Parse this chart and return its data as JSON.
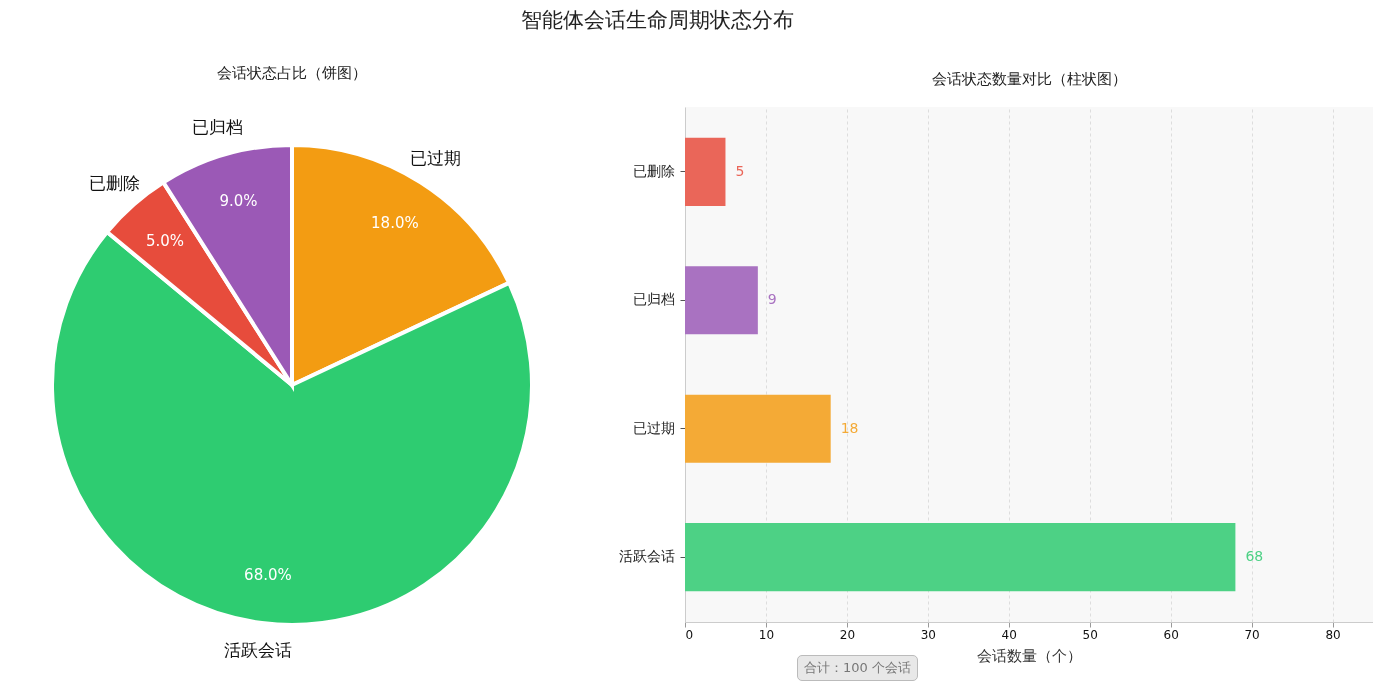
{
  "chart_data": [
    {
      "type": "other",
      "title": "智能体会话生命周期状态分布"
    },
    {
      "type": "pie",
      "title": "会话状态占比（饼图）",
      "categories": [
        "已过期",
        "活跃会话",
        "已删除",
        "已归档"
      ],
      "values": [
        18,
        68,
        5,
        9
      ],
      "colors": [
        "#f39c12",
        "#2ecc71",
        "#e74c3c",
        "#9b59b6"
      ],
      "value_labels": [
        "18.0%",
        "68.0%",
        "5.0%",
        "9.0%"
      ]
    },
    {
      "type": "bar",
      "title": "会话状态数量对比（柱状图）",
      "orientation": "horizontal",
      "categories": [
        "已删除",
        "已归档",
        "已过期",
        "活跃会话"
      ],
      "values": [
        5,
        9,
        18,
        68
      ],
      "colors": [
        "#ea6659",
        "#a972c1",
        "#f4aa36",
        "#4dd185"
      ],
      "xlim": [
        0,
        85
      ],
      "xticks": [
        0,
        10,
        20,
        30,
        40,
        50,
        60,
        70,
        80
      ],
      "xlabel": "会话数量（个）",
      "grid": "x",
      "data_labels": true,
      "annotations": [
        "合计：100 个会话"
      ]
    }
  ]
}
